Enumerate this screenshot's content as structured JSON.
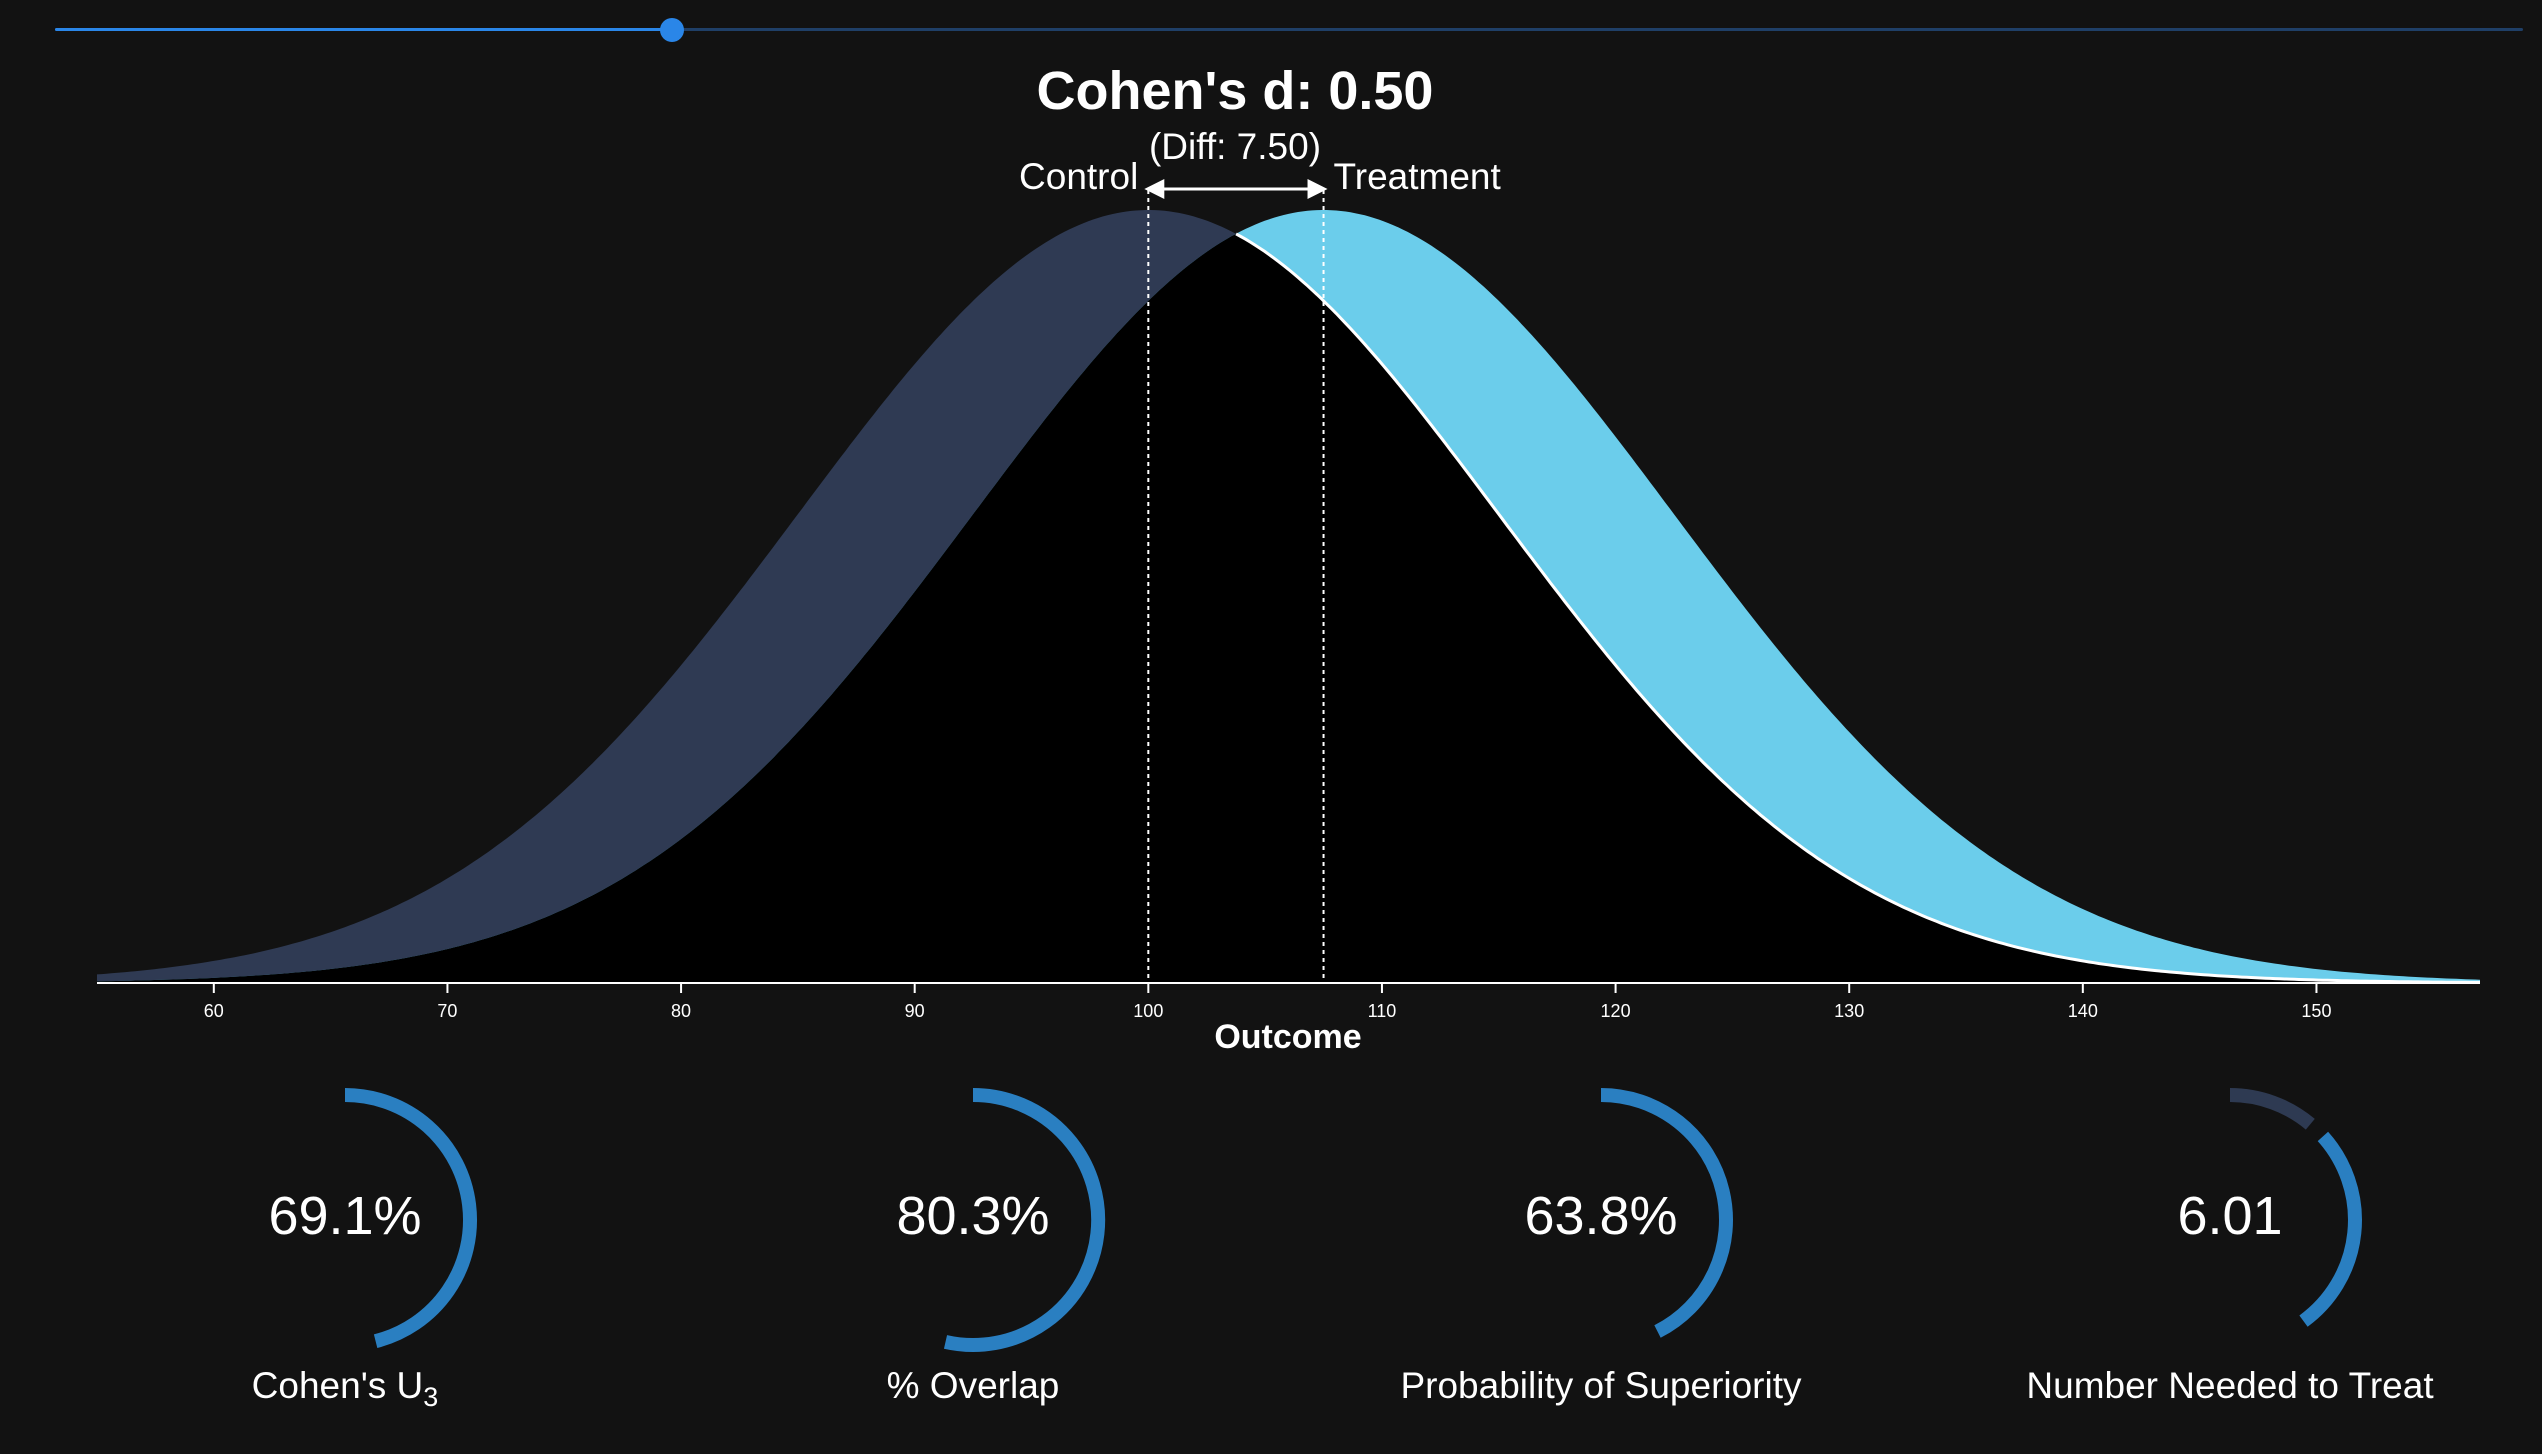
{
  "slider": {
    "value": 0.5,
    "min": 0,
    "max": 2,
    "accent": "#2a86e8",
    "track_color": "#1f3f67"
  },
  "chart": {
    "title": "Cohen's d: 0.50",
    "subtitle": "(Diff: 7.50)",
    "control_label": "Control",
    "treatment_label": "Treatment",
    "xlabel": "Outcome"
  },
  "chart_data": {
    "type": "area",
    "xlim": [
      55,
      157
    ],
    "x_ticks": [
      60,
      70,
      80,
      90,
      100,
      110,
      120,
      130,
      140,
      150
    ],
    "series": [
      {
        "name": "Control",
        "distribution": "normal",
        "mean": 100,
        "sd": 15,
        "color": "#2f3a53"
      },
      {
        "name": "Treatment",
        "distribution": "normal",
        "mean": 107.5,
        "sd": 15,
        "color": "#6bcdeb"
      }
    ],
    "overlap_color": "#000000",
    "cohens_d": 0.5,
    "mean_difference": 7.5
  },
  "metrics": [
    {
      "id": "u3",
      "value_text": "69.1%",
      "label": "Cohen's U",
      "label_sub": "3",
      "fraction": 0.691
    },
    {
      "id": "overlap",
      "value_text": "80.3%",
      "label": "% Overlap",
      "label_sub": "",
      "fraction": 0.803
    },
    {
      "id": "superiority",
      "value_text": "63.8%",
      "label": "Probability of Superiority",
      "label_sub": "",
      "fraction": 0.638
    },
    {
      "id": "nnt",
      "value_text": "6.01",
      "label": "Number Needed to Treat",
      "label_sub": "",
      "fraction": 0.166
    }
  ],
  "colors": {
    "gauge_arc": "#2a7fc1",
    "gauge_bg": "#2e3a52",
    "background": "#121212"
  }
}
